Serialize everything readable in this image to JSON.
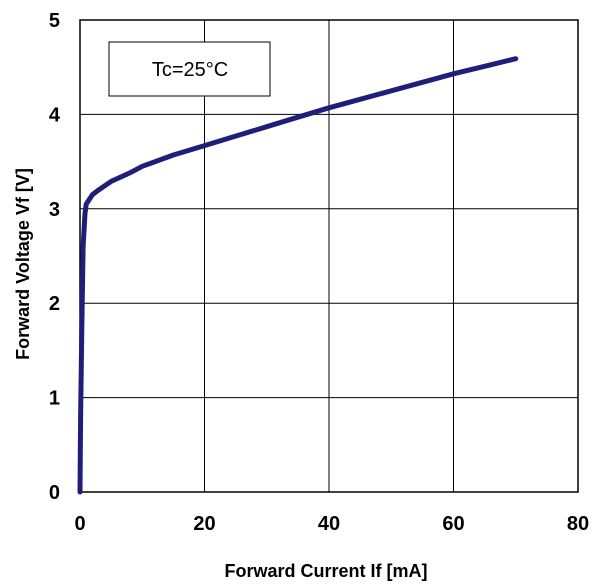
{
  "chart_data": {
    "type": "line",
    "xlabel": "Forward Current If [mA]",
    "ylabel": "Forward Voltage Vf [V]",
    "xlim": [
      0,
      80
    ],
    "ylim": [
      0,
      5
    ],
    "x_ticks": [
      "0",
      "20",
      "40",
      "60",
      "80"
    ],
    "y_ticks": [
      "0",
      "1",
      "2",
      "3",
      "4",
      "5"
    ],
    "grid": true,
    "annotation": "Tc=25°C",
    "line_color": "#1f1f7a",
    "series": [
      {
        "x": [
          0,
          0.1,
          0.3,
          0.5,
          0.8,
          1,
          2,
          3,
          5,
          8,
          10,
          15,
          20,
          25,
          30,
          35,
          40,
          45,
          50,
          55,
          60,
          65,
          70
        ],
        "y": [
          0,
          0.8,
          1.8,
          2.6,
          2.95,
          3.05,
          3.15,
          3.2,
          3.29,
          3.38,
          3.45,
          3.57,
          3.67,
          3.77,
          3.87,
          3.97,
          4.07,
          4.16,
          4.25,
          4.34,
          4.43,
          4.51,
          4.59
        ]
      }
    ]
  }
}
